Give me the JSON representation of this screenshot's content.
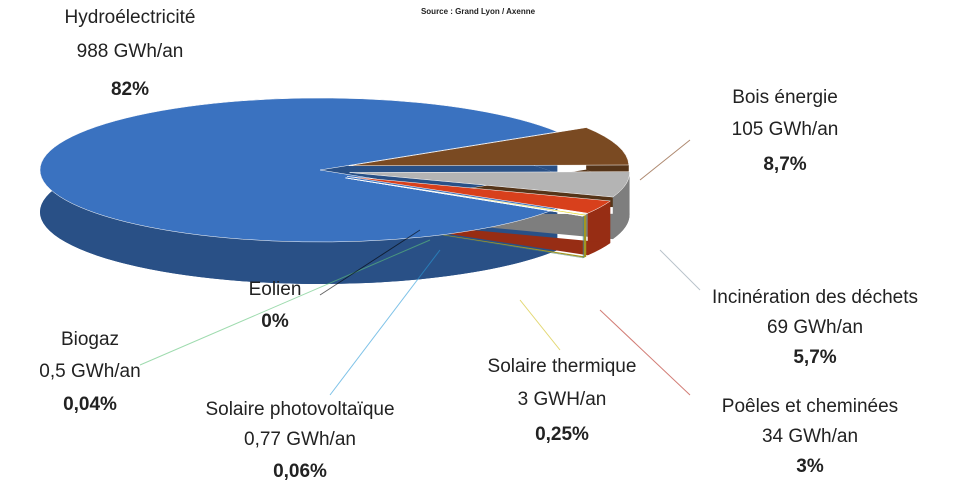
{
  "chart_data": {
    "type": "pie",
    "source": "Source : Grand Lyon / Axenne",
    "categories": [
      "Hydroélectricité",
      "Bois énergie",
      "Incinération des déchets",
      "Poêles et cheminées",
      "Solaire thermique",
      "Solaire photovoltaïque",
      "Biogaz",
      "Eolien"
    ],
    "amounts": [
      "988 GWh/an",
      "105 GWh/an",
      "69 GWh/an",
      "34 GWh/an",
      "3 GWH/an",
      "0,77 GWh/an",
      "0,5 GWh/an",
      null
    ],
    "values": [
      82,
      8.7,
      5.7,
      3,
      0.25,
      0.06,
      0.04,
      0
    ],
    "value_labels": [
      "82%",
      "8,7%",
      "5,7%",
      "3%",
      "0,25%",
      "0,06%",
      "0,04%",
      "0%"
    ],
    "colors": [
      "#3a72c0",
      "#7a4a22",
      "#b4b4b4",
      "#d8401c",
      "#e8d830",
      "#6fb0e0",
      "#6fcf8a",
      "#444444"
    ],
    "label_colors": [
      "#2e5fa3",
      "#7a3b12",
      "#8a9aa8",
      "#b5281c",
      "#cfbd12",
      "#2a9ad8",
      "#5fc47a",
      "#000000"
    ]
  }
}
